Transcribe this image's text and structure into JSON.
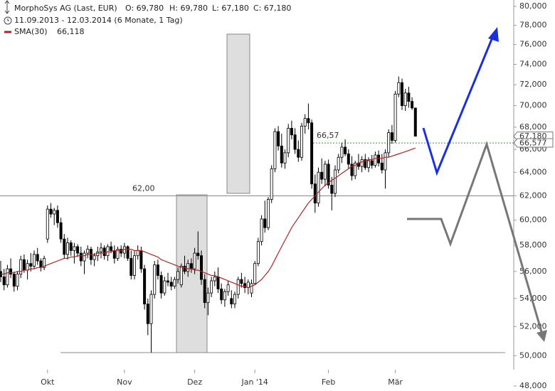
{
  "chart_data": {
    "type": "candlestick",
    "title": "MorphoSys AG (Last, EUR)",
    "stats": [
      "O: 69,780",
      "H: 69,780",
      "L: 67,180",
      "C: 67,180"
    ],
    "subtitle": "11.09.2013 - 12.03.2014 (6 Monate, 1 Tag)",
    "log_scale": true,
    "ylim": [
      48,
      80
    ],
    "yticks": [
      {
        "value": 48,
        "label": "48,000"
      },
      {
        "value": 50,
        "label": "50,000"
      },
      {
        "value": 52,
        "label": "52,000"
      },
      {
        "value": 54,
        "label": "54,000"
      },
      {
        "value": 56,
        "label": "56,000"
      },
      {
        "value": 58,
        "label": "58,000"
      },
      {
        "value": 60,
        "label": "60,000"
      },
      {
        "value": 62,
        "label": "62,000"
      },
      {
        "value": 64,
        "label": "64,000"
      },
      {
        "value": 66,
        "label": "66,000"
      },
      {
        "value": 68,
        "label": "68,000"
      },
      {
        "value": 70,
        "label": "70,000"
      },
      {
        "value": 72,
        "label": "72,000"
      },
      {
        "value": 74,
        "label": "74,000"
      },
      {
        "value": 76,
        "label": "76,000"
      },
      {
        "value": 78,
        "label": "78,000"
      },
      {
        "value": 80,
        "label": "80,000"
      }
    ],
    "categories": [
      null,
      null,
      null,
      null,
      null,
      null,
      null,
      null,
      null,
      null,
      null,
      null,
      null,
      null,
      "Okt",
      null,
      null,
      null,
      null,
      null,
      null,
      null,
      null,
      null,
      null,
      null,
      null,
      null,
      null,
      null,
      null,
      null,
      null,
      null,
      null,
      null,
      null,
      "Nov",
      null,
      null,
      null,
      null,
      null,
      null,
      null,
      null,
      null,
      null,
      null,
      null,
      null,
      null,
      null,
      null,
      null,
      null,
      null,
      null,
      "Dez",
      null,
      null,
      null,
      null,
      null,
      null,
      null,
      null,
      null,
      null,
      null,
      null,
      null,
      null,
      null,
      null,
      null,
      "Jan '14",
      null,
      null,
      null,
      null,
      null,
      null,
      null,
      null,
      null,
      null,
      null,
      null,
      null,
      null,
      null,
      null,
      null,
      null,
      null,
      null,
      null,
      "Feb",
      null,
      null,
      null,
      null,
      null,
      null,
      null,
      null,
      null,
      null,
      null,
      null,
      null,
      null,
      null,
      null,
      null,
      null,
      null,
      "Mär",
      null,
      null,
      null,
      null,
      null,
      null
    ],
    "open": [
      56.0,
      55.6,
      55.0,
      56.2,
      55.8,
      54.9,
      55.8,
      56.9,
      56.1,
      56.6,
      56.4,
      57.3,
      56.8,
      56.3,
      58.5,
      60.9,
      60.5,
      60.8,
      59.8,
      58.5,
      57.3,
      58.2,
      57.6,
      57.9,
      57.4,
      56.8,
      57.4,
      57.7,
      56.9,
      57.2,
      57.5,
      57.8,
      57.2,
      57.9,
      57.6,
      57.0,
      57.7,
      57.4,
      57.9,
      57.0,
      55.7,
      57.2,
      57.6,
      56.2,
      53.6,
      52.2,
      54.3,
      56.5,
      55.7,
      54.4,
      55.3,
      55.2,
      54.9,
      55.4,
      55.0,
      56.4,
      56.0,
      56.6,
      56.2,
      57.4,
      57.2,
      55.4,
      53.7,
      54.4,
      55.3,
      55.6,
      54.7,
      53.9,
      54.5,
      54.0,
      53.6,
      54.3,
      55.4,
      55.1,
      54.8,
      54.4,
      55.1,
      56.6,
      58.3,
      60.1,
      59.4,
      61.7,
      64.3,
      67.6,
      66.3,
      64.8,
      65.7,
      67.9,
      67.3,
      66.0,
      65.3,
      68.1,
      68.8,
      68.4,
      63.0,
      61.4,
      64.0,
      63.4,
      64.7,
      62.9,
      62.2,
      64.2,
      65.3,
      66.2,
      65.6,
      64.7,
      63.7,
      64.8,
      64.5,
      65.1,
      64.4,
      65.0,
      64.6,
      65.5,
      64.8,
      64.2,
      65.7,
      67.5,
      66.8,
      71.1,
      72.2,
      70.0,
      71.2,
      70.4,
      69.78
    ],
    "high": [
      56.8,
      56.2,
      56.5,
      57.0,
      56.0,
      56.0,
      57.2,
      57.3,
      56.9,
      57.4,
      57.6,
      57.8,
      57.0,
      57.2,
      61.2,
      61.4,
      61.0,
      61.2,
      60.2,
      58.9,
      58.6,
      58.4,
      58.2,
      58.1,
      57.9,
      57.6,
      58.0,
      57.9,
      57.4,
      57.9,
      58.2,
      58.0,
      58.1,
      58.3,
      58.0,
      57.9,
      58.0,
      58.2,
      58.0,
      57.6,
      57.6,
      58.0,
      57.9,
      56.5,
      54.0,
      54.6,
      56.8,
      56.9,
      56.0,
      55.6,
      55.9,
      55.6,
      55.6,
      56.3,
      56.6,
      57.2,
      56.9,
      57.0,
      57.8,
      59.1,
      57.6,
      55.8,
      54.8,
      55.6,
      56.0,
      56.3,
      55.1,
      54.7,
      55.3,
      54.6,
      54.5,
      55.6,
      55.9,
      55.6,
      55.4,
      55.4,
      56.8,
      58.6,
      60.4,
      61.6,
      61.9,
      64.6,
      67.9,
      68.1,
      67.4,
      66.0,
      68.3,
      68.6,
      67.9,
      66.8,
      68.4,
      69.2,
      70.2,
      68.7,
      63.8,
      64.4,
      65.2,
      65.0,
      65.1,
      63.6,
      64.6,
      65.6,
      66.6,
      66.9,
      66.0,
      65.4,
      65.0,
      65.6,
      65.4,
      65.6,
      65.3,
      65.5,
      65.8,
      65.9,
      65.6,
      66.0,
      67.8,
      68.2,
      71.4,
      72.8,
      72.6,
      71.6,
      71.8,
      70.8,
      69.78
    ],
    "low": [
      55.2,
      54.6,
      54.8,
      55.5,
      54.5,
      54.6,
      55.5,
      55.9,
      55.4,
      56.0,
      56.2,
      56.5,
      56.0,
      56.1,
      58.2,
      60.2,
      59.6,
      59.4,
      58.2,
      57.0,
      56.9,
      57.2,
      56.6,
      57.1,
      56.4,
      55.8,
      57.0,
      56.5,
      56.4,
      56.8,
      57.0,
      56.9,
      56.8,
      57.4,
      56.6,
      56.8,
      57.1,
      57.0,
      56.8,
      55.4,
      55.4,
      56.9,
      55.9,
      53.2,
      51.4,
      50.2,
      54.0,
      55.4,
      54.0,
      54.2,
      54.9,
      54.6,
      54.7,
      55.1,
      54.8,
      55.8,
      55.6,
      55.9,
      55.8,
      56.9,
      55.0,
      53.3,
      52.8,
      54.1,
      54.9,
      54.4,
      53.6,
      53.4,
      54.2,
      53.3,
      53.3,
      54.0,
      54.8,
      54.4,
      54.3,
      54.1,
      55.0,
      56.4,
      58.0,
      59.0,
      59.2,
      61.4,
      64.0,
      65.9,
      64.4,
      64.3,
      65.3,
      66.9,
      65.6,
      64.9,
      65.0,
      67.4,
      67.8,
      62.6,
      60.6,
      61.1,
      63.0,
      62.8,
      62.6,
      60.8,
      61.9,
      63.9,
      64.8,
      65.4,
      64.3,
      63.3,
      63.4,
      64.2,
      64.0,
      64.2,
      64.0,
      64.3,
      64.4,
      64.5,
      63.9,
      62.6,
      65.3,
      66.5,
      66.6,
      70.8,
      69.6,
      69.5,
      69.8,
      69.6,
      67.18
    ],
    "close": [
      55.6,
      55.0,
      56.2,
      55.8,
      54.9,
      55.8,
      56.9,
      56.1,
      56.6,
      56.4,
      57.3,
      56.8,
      56.3,
      57.0,
      60.9,
      60.5,
      60.8,
      59.8,
      58.5,
      57.3,
      58.2,
      57.6,
      57.9,
      57.4,
      56.8,
      57.4,
      57.7,
      56.9,
      57.2,
      57.5,
      57.8,
      57.2,
      57.9,
      57.6,
      57.0,
      57.7,
      57.4,
      57.9,
      57.0,
      55.7,
      57.2,
      57.6,
      56.2,
      53.6,
      52.2,
      54.3,
      56.5,
      55.7,
      54.4,
      55.3,
      55.2,
      54.9,
      55.4,
      56.0,
      56.4,
      56.0,
      56.6,
      56.2,
      57.4,
      57.2,
      55.4,
      53.7,
      54.4,
      55.3,
      55.6,
      54.7,
      53.9,
      54.5,
      55.0,
      53.6,
      54.3,
      55.4,
      55.1,
      54.8,
      55.2,
      55.1,
      56.6,
      58.3,
      60.1,
      59.4,
      61.7,
      64.3,
      67.6,
      66.3,
      64.8,
      65.7,
      67.9,
      67.3,
      66.0,
      65.3,
      68.1,
      68.8,
      68.4,
      63.0,
      61.4,
      64.0,
      63.4,
      64.7,
      62.9,
      62.2,
      64.2,
      65.3,
      66.2,
      65.6,
      64.7,
      63.7,
      64.8,
      64.5,
      65.1,
      64.4,
      65.0,
      64.6,
      65.5,
      64.8,
      64.2,
      65.7,
      67.5,
      66.8,
      71.1,
      72.2,
      70.0,
      71.2,
      70.4,
      69.78,
      67.18
    ],
    "series": [
      {
        "name": "SMA(30)",
        "color": "#b22222",
        "legend_value": "66,118",
        "values": [
          55.8,
          55.8,
          55.9,
          55.9,
          55.9,
          56.0,
          56.0,
          56.1,
          56.1,
          56.2,
          56.2,
          56.3,
          56.3,
          56.4,
          56.5,
          56.6,
          56.7,
          56.8,
          56.9,
          57.0,
          57.0,
          57.1,
          57.1,
          57.2,
          57.2,
          57.2,
          57.3,
          57.3,
          57.3,
          57.4,
          57.4,
          57.4,
          57.5,
          57.5,
          57.6,
          57.6,
          57.6,
          57.7,
          57.7,
          57.7,
          57.6,
          57.6,
          57.6,
          57.5,
          57.4,
          57.3,
          57.2,
          57.1,
          56.9,
          56.8,
          56.7,
          56.6,
          56.5,
          56.4,
          56.3,
          56.3,
          56.2,
          56.2,
          56.1,
          56.1,
          56.0,
          55.9,
          55.8,
          55.7,
          55.7,
          55.6,
          55.5,
          55.4,
          55.3,
          55.2,
          55.1,
          55.0,
          54.9,
          54.9,
          54.8,
          54.9,
          55.0,
          55.2,
          55.4,
          55.7,
          56.0,
          56.4,
          56.9,
          57.4,
          57.9,
          58.4,
          58.9,
          59.4,
          59.8,
          60.2,
          60.6,
          61.0,
          61.4,
          61.7,
          62.0,
          62.3,
          62.6,
          62.9,
          63.1,
          63.3,
          63.5,
          63.7,
          63.9,
          64.1,
          64.3,
          64.5,
          64.6,
          64.8,
          64.9,
          65.0,
          65.1,
          65.1,
          65.2,
          65.2,
          65.2,
          65.3,
          65.3,
          65.4,
          65.5,
          65.6,
          65.7,
          65.8,
          65.9,
          66.0,
          66.118
        ]
      }
    ],
    "levels": [
      {
        "value": 62,
        "label": "62,00",
        "color": "#888888"
      },
      {
        "value": 66.57,
        "label": "66,57",
        "color": "#3a9a3a"
      }
    ],
    "price_tags": [
      {
        "value": 67.18,
        "label": "67,180"
      },
      {
        "value": 66.577,
        "label": "66,577"
      }
    ],
    "up_color": "#ffffff",
    "down_color": "#000000"
  }
}
